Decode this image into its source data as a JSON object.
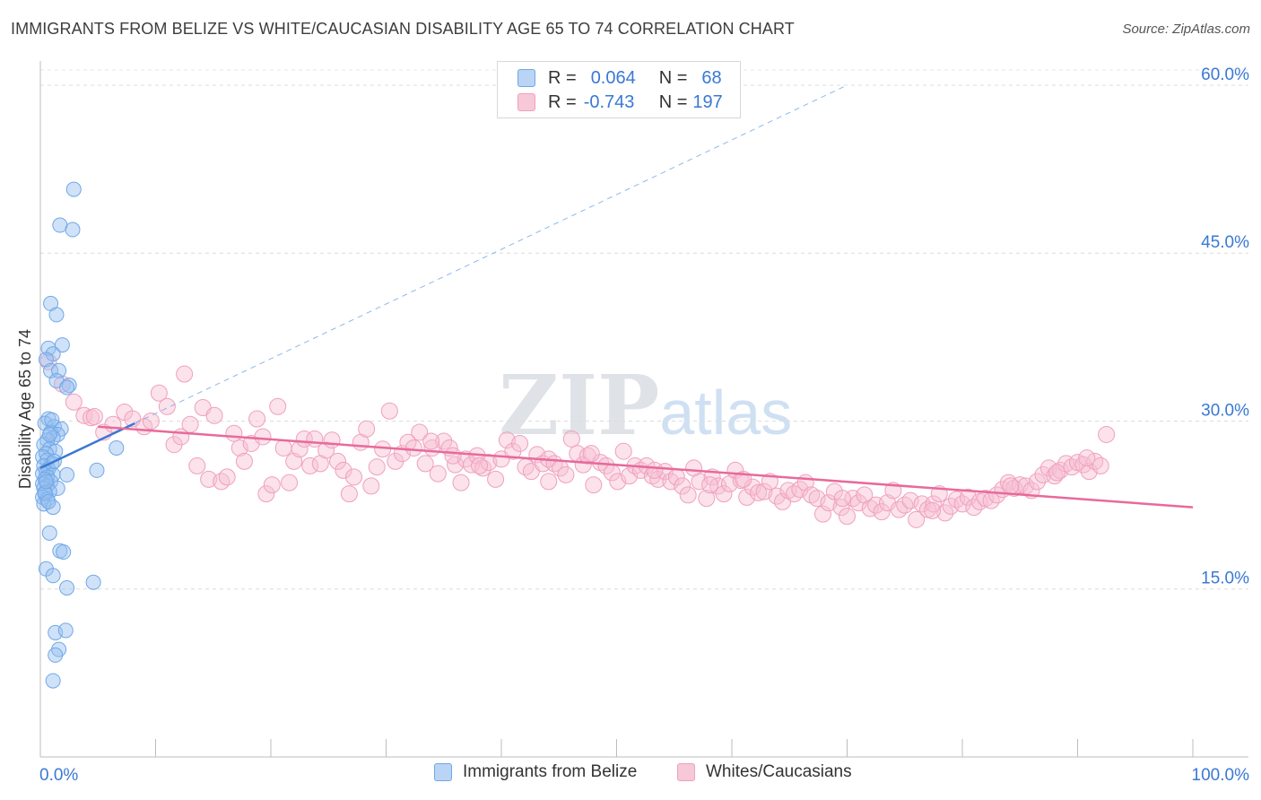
{
  "title": "IMMIGRANTS FROM BELIZE VS WHITE/CAUCASIAN DISABILITY AGE 65 TO 74 CORRELATION CHART",
  "source": "Source: ZipAtlas.com",
  "watermark": {
    "zip": "ZIP",
    "atlas": "atlas"
  },
  "legend": {
    "series1": {
      "r_label": "R =",
      "r_value": "0.064",
      "n_label": "N =",
      "n_value": "68"
    },
    "series2": {
      "r_label": "R =",
      "r_value": "-0.743",
      "n_label": "N =",
      "n_value": "197"
    }
  },
  "bottom_legend": {
    "series1": "Immigrants from Belize",
    "series2": "Whites/Caucasians"
  },
  "chart_data": {
    "type": "scatter",
    "ylabel": "Disability Age 65 to 74",
    "xlabel": "",
    "xlim": [
      0,
      100
    ],
    "ylim": [
      0,
      62
    ],
    "x_tick_labels": {
      "left": "0.0%",
      "right": "100.0%"
    },
    "y_ticks": [
      15,
      30,
      45,
      60
    ],
    "y_tick_labels": [
      "15.0%",
      "30.0%",
      "45.0%",
      "60.0%"
    ],
    "colors": {
      "series1": "#6fa8e8",
      "series1_line": "#3a78d4",
      "series2": "#f0a0bc",
      "series2_line": "#e86a9a",
      "tick_label": "#3a78d4"
    },
    "series": [
      {
        "name": "Immigrants from Belize",
        "r": 0.064,
        "n": 68,
        "trend": {
          "x0": 0.0,
          "y0": 25.8,
          "x1": 8.2,
          "y1": 29.8,
          "dash_to_x": 70,
          "dash_to_y": 60
        },
        "points": [
          [
            2.9,
            50.7
          ],
          [
            1.7,
            47.5
          ],
          [
            2.8,
            47.1
          ],
          [
            0.9,
            40.5
          ],
          [
            1.4,
            39.5
          ],
          [
            0.7,
            36.5
          ],
          [
            1.9,
            36.8
          ],
          [
            1.1,
            36.0
          ],
          [
            0.5,
            35.5
          ],
          [
            0.9,
            34.5
          ],
          [
            1.6,
            34.5
          ],
          [
            1.4,
            33.6
          ],
          [
            2.5,
            33.2
          ],
          [
            2.3,
            33.0
          ],
          [
            0.7,
            30.2
          ],
          [
            0.4,
            29.8
          ],
          [
            1.2,
            29.5
          ],
          [
            1.8,
            29.3
          ],
          [
            0.9,
            29.0
          ],
          [
            1.5,
            28.8
          ],
          [
            1.1,
            28.5
          ],
          [
            0.6,
            28.3
          ],
          [
            0.3,
            27.9
          ],
          [
            0.8,
            27.5
          ],
          [
            1.3,
            27.3
          ],
          [
            0.5,
            27.1
          ],
          [
            0.2,
            26.8
          ],
          [
            0.6,
            26.5
          ],
          [
            1.0,
            26.2
          ],
          [
            0.3,
            26.0
          ],
          [
            0.7,
            25.7
          ],
          [
            0.5,
            25.5
          ],
          [
            0.2,
            25.3
          ],
          [
            1.1,
            25.2
          ],
          [
            2.3,
            25.2
          ],
          [
            0.6,
            25.0
          ],
          [
            0.4,
            24.8
          ],
          [
            0.9,
            24.6
          ],
          [
            0.2,
            24.4
          ],
          [
            0.6,
            24.2
          ],
          [
            0.3,
            24.0
          ],
          [
            1.5,
            24.0
          ],
          [
            0.8,
            23.7
          ],
          [
            0.4,
            23.5
          ],
          [
            0.2,
            23.2
          ],
          [
            0.6,
            23.0
          ],
          [
            0.3,
            22.6
          ],
          [
            1.1,
            22.3
          ],
          [
            6.6,
            27.6
          ],
          [
            4.9,
            25.6
          ],
          [
            0.8,
            20.0
          ],
          [
            1.7,
            18.4
          ],
          [
            2.0,
            18.3
          ],
          [
            0.5,
            16.8
          ],
          [
            1.1,
            16.2
          ],
          [
            2.3,
            15.1
          ],
          [
            4.6,
            15.6
          ],
          [
            1.3,
            11.1
          ],
          [
            2.2,
            11.3
          ],
          [
            1.6,
            9.6
          ],
          [
            1.3,
            9.1
          ],
          [
            1.1,
            6.8
          ],
          [
            0.8,
            28.8
          ],
          [
            1.0,
            30.1
          ],
          [
            0.4,
            23.6
          ],
          [
            0.5,
            24.6
          ],
          [
            0.7,
            22.8
          ],
          [
            1.2,
            26.4
          ]
        ]
      },
      {
        "name": "Whites/Caucasians",
        "r": -0.743,
        "n": 197,
        "trend": {
          "x0": 5.0,
          "y0": 29.5,
          "x1": 100.0,
          "y1": 22.3
        },
        "points": [
          [
            0.7,
            35.3
          ],
          [
            1.9,
            33.3
          ],
          [
            2.9,
            31.7
          ],
          [
            3.8,
            30.5
          ],
          [
            4.4,
            30.3
          ],
          [
            4.7,
            30.4
          ],
          [
            5.5,
            29.0
          ],
          [
            6.3,
            29.7
          ],
          [
            7.3,
            30.8
          ],
          [
            8.0,
            30.2
          ],
          [
            9.0,
            29.5
          ],
          [
            9.6,
            30.0
          ],
          [
            10.3,
            32.5
          ],
          [
            11.0,
            31.3
          ],
          [
            11.6,
            27.9
          ],
          [
            12.2,
            28.6
          ],
          [
            12.5,
            34.2
          ],
          [
            13.0,
            29.7
          ],
          [
            13.6,
            26.0
          ],
          [
            14.1,
            31.2
          ],
          [
            14.6,
            24.8
          ],
          [
            15.1,
            30.5
          ],
          [
            15.7,
            24.6
          ],
          [
            16.2,
            25.0
          ],
          [
            16.8,
            28.9
          ],
          [
            17.3,
            27.6
          ],
          [
            17.7,
            26.4
          ],
          [
            18.3,
            28.0
          ],
          [
            18.8,
            30.2
          ],
          [
            19.3,
            28.6
          ],
          [
            19.6,
            23.5
          ],
          [
            20.1,
            24.3
          ],
          [
            20.6,
            31.3
          ],
          [
            21.1,
            27.6
          ],
          [
            21.6,
            24.5
          ],
          [
            22.0,
            26.4
          ],
          [
            22.5,
            27.5
          ],
          [
            22.9,
            28.4
          ],
          [
            23.4,
            26.0
          ],
          [
            23.8,
            28.4
          ],
          [
            24.3,
            26.2
          ],
          [
            24.8,
            27.4
          ],
          [
            25.3,
            28.3
          ],
          [
            25.8,
            26.4
          ],
          [
            26.3,
            25.6
          ],
          [
            26.8,
            23.5
          ],
          [
            27.2,
            25.0
          ],
          [
            27.8,
            28.1
          ],
          [
            28.3,
            29.3
          ],
          [
            28.7,
            24.2
          ],
          [
            29.2,
            25.9
          ],
          [
            29.7,
            27.5
          ],
          [
            30.3,
            30.9
          ],
          [
            30.8,
            26.4
          ],
          [
            31.4,
            27.1
          ],
          [
            31.9,
            28.1
          ],
          [
            32.4,
            27.6
          ],
          [
            32.9,
            29.0
          ],
          [
            33.4,
            26.2
          ],
          [
            34.0,
            27.6
          ],
          [
            34.5,
            25.3
          ],
          [
            35.0,
            28.2
          ],
          [
            35.5,
            27.6
          ],
          [
            36.0,
            26.1
          ],
          [
            36.5,
            24.5
          ],
          [
            36.9,
            26.6
          ],
          [
            37.4,
            26.1
          ],
          [
            37.9,
            26.9
          ],
          [
            38.4,
            25.8
          ],
          [
            38.9,
            26.3
          ],
          [
            39.5,
            24.8
          ],
          [
            40.0,
            26.6
          ],
          [
            40.5,
            28.3
          ],
          [
            41.0,
            27.3
          ],
          [
            41.6,
            28.0
          ],
          [
            42.1,
            25.9
          ],
          [
            42.6,
            25.5
          ],
          [
            43.1,
            27.0
          ],
          [
            43.6,
            26.2
          ],
          [
            44.1,
            26.6
          ],
          [
            44.6,
            26.2
          ],
          [
            45.1,
            25.8
          ],
          [
            45.6,
            25.2
          ],
          [
            46.1,
            28.4
          ],
          [
            46.6,
            27.1
          ],
          [
            47.1,
            26.1
          ],
          [
            47.5,
            26.9
          ],
          [
            48.0,
            24.3
          ],
          [
            48.6,
            26.3
          ],
          [
            49.1,
            26.0
          ],
          [
            49.6,
            25.4
          ],
          [
            50.1,
            24.6
          ],
          [
            50.6,
            27.3
          ],
          [
            51.1,
            25.1
          ],
          [
            51.6,
            26.0
          ],
          [
            52.1,
            25.6
          ],
          [
            52.6,
            26.0
          ],
          [
            53.1,
            25.1
          ],
          [
            53.6,
            24.8
          ],
          [
            54.2,
            25.5
          ],
          [
            54.7,
            24.6
          ],
          [
            55.2,
            25.0
          ],
          [
            55.7,
            24.2
          ],
          [
            56.2,
            23.4
          ],
          [
            56.7,
            25.8
          ],
          [
            57.2,
            24.6
          ],
          [
            57.8,
            23.1
          ],
          [
            58.3,
            25.0
          ],
          [
            58.8,
            24.2
          ],
          [
            59.3,
            23.5
          ],
          [
            59.8,
            24.4
          ],
          [
            60.3,
            25.6
          ],
          [
            60.8,
            24.7
          ],
          [
            61.3,
            23.2
          ],
          [
            61.8,
            24.1
          ],
          [
            62.3,
            23.6
          ],
          [
            62.8,
            23.7
          ],
          [
            63.3,
            24.6
          ],
          [
            63.9,
            23.3
          ],
          [
            64.4,
            22.8
          ],
          [
            64.9,
            23.8
          ],
          [
            65.4,
            23.5
          ],
          [
            65.9,
            23.9
          ],
          [
            66.4,
            24.5
          ],
          [
            66.9,
            23.4
          ],
          [
            67.4,
            23.1
          ],
          [
            67.9,
            21.7
          ],
          [
            68.4,
            22.7
          ],
          [
            68.9,
            23.7
          ],
          [
            69.5,
            22.3
          ],
          [
            70.0,
            21.5
          ],
          [
            70.5,
            23.1
          ],
          [
            71.0,
            22.7
          ],
          [
            71.5,
            23.4
          ],
          [
            72.0,
            22.2
          ],
          [
            72.5,
            22.5
          ],
          [
            73.0,
            21.9
          ],
          [
            73.5,
            22.7
          ],
          [
            74.0,
            23.8
          ],
          [
            74.5,
            22.1
          ],
          [
            75.0,
            22.5
          ],
          [
            75.5,
            22.9
          ],
          [
            76.0,
            21.2
          ],
          [
            76.5,
            22.6
          ],
          [
            77.0,
            22.1
          ],
          [
            77.5,
            22.6
          ],
          [
            78.0,
            23.5
          ],
          [
            78.5,
            21.8
          ],
          [
            79.0,
            22.4
          ],
          [
            79.5,
            23.0
          ],
          [
            80.0,
            22.6
          ],
          [
            80.5,
            23.2
          ],
          [
            81.0,
            22.3
          ],
          [
            81.5,
            22.8
          ],
          [
            82.0,
            23.1
          ],
          [
            82.5,
            22.9
          ],
          [
            83.0,
            23.4
          ],
          [
            83.5,
            23.9
          ],
          [
            84.0,
            24.5
          ],
          [
            84.5,
            24.0
          ],
          [
            85.0,
            24.3
          ],
          [
            85.5,
            24.2
          ],
          [
            86.0,
            23.8
          ],
          [
            86.5,
            24.6
          ],
          [
            87.0,
            25.2
          ],
          [
            87.5,
            25.8
          ],
          [
            88.0,
            25.1
          ],
          [
            88.5,
            25.6
          ],
          [
            89.0,
            26.2
          ],
          [
            89.5,
            25.9
          ],
          [
            90.0,
            26.3
          ],
          [
            90.5,
            26.1
          ],
          [
            91.0,
            25.5
          ],
          [
            91.5,
            26.4
          ],
          [
            92.0,
            26.0
          ],
          [
            92.5,
            28.8
          ],
          [
            38.1,
            26.0
          ],
          [
            33.9,
            28.2
          ],
          [
            44.1,
            24.6
          ],
          [
            53.3,
            25.6
          ],
          [
            61.0,
            24.8
          ],
          [
            69.6,
            23.1
          ],
          [
            77.4,
            22.0
          ],
          [
            84.2,
            24.2
          ],
          [
            88.2,
            25.4
          ],
          [
            90.8,
            26.7
          ],
          [
            58.1,
            24.3
          ],
          [
            47.8,
            27.1
          ],
          [
            35.8,
            26.9
          ]
        ]
      }
    ]
  }
}
